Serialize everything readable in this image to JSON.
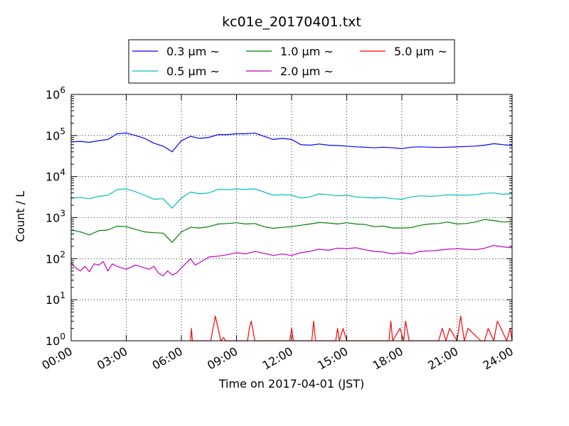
{
  "chart_data": {
    "type": "line",
    "title": "kc01e_20170401.txt",
    "xlabel": "Time on 2017-04-01 (JST)",
    "ylabel": "Count / L",
    "xlim": [
      0,
      24
    ],
    "ylim": [
      1,
      1000000
    ],
    "yscale": "log",
    "grid": true,
    "legend_position": "top",
    "x_tick_labels": [
      "00:00",
      "03:00",
      "06:00",
      "09:00",
      "12:00",
      "15:00",
      "18:00",
      "21:00",
      "24:00"
    ],
    "y_tick_labels": [
      {
        "base": "10",
        "exp": "0"
      },
      {
        "base": "10",
        "exp": "1"
      },
      {
        "base": "10",
        "exp": "2"
      },
      {
        "base": "10",
        "exp": "3"
      },
      {
        "base": "10",
        "exp": "4"
      },
      {
        "base": "10",
        "exp": "5"
      },
      {
        "base": "10",
        "exp": "6"
      }
    ],
    "series": [
      {
        "name": "0.3 μm ~",
        "color": "#0000ff",
        "x": [
          0,
          0.5,
          1,
          1.5,
          2,
          2.5,
          3,
          3.5,
          4,
          4.5,
          5,
          5.5,
          6,
          6.5,
          7,
          7.5,
          8,
          8.5,
          9,
          9.5,
          10,
          10.5,
          11,
          11.5,
          12,
          12.5,
          13,
          13.5,
          14,
          14.5,
          15,
          15.5,
          16,
          16.5,
          17,
          17.5,
          18,
          18.5,
          19,
          19.5,
          20,
          20.5,
          21,
          21.5,
          22,
          22.5,
          23,
          23.5,
          24
        ],
        "y": [
          70000,
          72000,
          68000,
          75000,
          80000,
          110000,
          115000,
          100000,
          85000,
          65000,
          55000,
          40000,
          75000,
          95000,
          85000,
          90000,
          105000,
          105000,
          110000,
          110000,
          115000,
          95000,
          80000,
          85000,
          80000,
          60000,
          58000,
          62000,
          58000,
          57000,
          55000,
          53000,
          52000,
          50000,
          52000,
          50000,
          48000,
          52000,
          53000,
          52000,
          51000,
          52000,
          53000,
          54000,
          55000,
          58000,
          63000,
          60000,
          57000
        ]
      },
      {
        "name": "0.5 μm ~",
        "color": "#00bfbf",
        "x": [
          0,
          0.5,
          1,
          1.5,
          2,
          2.5,
          3,
          3.5,
          4,
          4.5,
          5,
          5.5,
          6,
          6.5,
          7,
          7.5,
          8,
          8.5,
          9,
          9.5,
          10,
          10.5,
          11,
          11.5,
          12,
          12.5,
          13,
          13.5,
          14,
          14.5,
          15,
          15.5,
          16,
          16.5,
          17,
          17.5,
          18,
          18.5,
          19,
          19.5,
          20,
          20.5,
          21,
          21.5,
          22,
          22.5,
          23,
          23.5,
          24
        ],
        "y": [
          3000,
          3100,
          2900,
          3300,
          3500,
          4800,
          5000,
          4300,
          3500,
          2800,
          2900,
          1700,
          3000,
          4200,
          3800,
          4000,
          4900,
          4800,
          5000,
          4900,
          5000,
          4200,
          3500,
          3600,
          3500,
          3000,
          3200,
          3800,
          3600,
          3400,
          3500,
          3200,
          3100,
          3000,
          3100,
          2900,
          2800,
          3200,
          3400,
          3300,
          3400,
          3600,
          3500,
          3500,
          3600,
          3900,
          4000,
          3700,
          3800
        ]
      },
      {
        "name": "1.0 μm ~",
        "color": "#008000",
        "x": [
          0,
          0.5,
          1,
          1.5,
          2,
          2.5,
          3,
          3.5,
          4,
          4.5,
          5,
          5.5,
          6,
          6.5,
          7,
          7.5,
          8,
          8.5,
          9,
          9.5,
          10,
          10.5,
          11,
          11.5,
          12,
          12.5,
          13,
          13.5,
          14,
          14.5,
          15,
          15.5,
          16,
          16.5,
          17,
          17.5,
          18,
          18.5,
          19,
          19.5,
          20,
          20.5,
          21,
          21.5,
          22,
          22.5,
          23,
          23.5,
          24
        ],
        "y": [
          500,
          450,
          380,
          480,
          500,
          620,
          600,
          520,
          450,
          430,
          420,
          250,
          450,
          580,
          560,
          600,
          700,
          720,
          750,
          700,
          720,
          600,
          550,
          580,
          600,
          650,
          700,
          760,
          740,
          700,
          750,
          700,
          680,
          600,
          620,
          560,
          560,
          570,
          650,
          700,
          720,
          780,
          700,
          720,
          780,
          900,
          850,
          780,
          800
        ]
      },
      {
        "name": "2.0 μm ~",
        "color": "#bf00bf",
        "x": [
          0,
          0.25,
          0.5,
          0.75,
          1,
          1.25,
          1.5,
          1.75,
          2,
          2.25,
          2.5,
          3,
          3.5,
          4,
          4.25,
          4.5,
          4.75,
          5,
          5.25,
          5.5,
          5.75,
          6,
          6.5,
          6.75,
          7,
          7.5,
          8,
          8.5,
          9,
          9.5,
          10,
          10.5,
          11,
          11.5,
          12,
          12.5,
          13,
          13.5,
          14,
          14.5,
          15,
          15.5,
          16,
          16.5,
          17,
          17.5,
          18,
          18.5,
          19,
          19.5,
          20,
          20.5,
          21,
          21.5,
          22,
          22.5,
          23,
          23.5,
          24
        ],
        "y": [
          80,
          60,
          50,
          65,
          48,
          75,
          70,
          85,
          50,
          75,
          65,
          55,
          70,
          60,
          55,
          65,
          45,
          38,
          50,
          40,
          45,
          60,
          100,
          70,
          80,
          110,
          115,
          125,
          140,
          130,
          150,
          135,
          120,
          130,
          120,
          140,
          150,
          170,
          160,
          180,
          175,
          185,
          165,
          150,
          145,
          130,
          140,
          130,
          150,
          155,
          160,
          170,
          175,
          170,
          165,
          180,
          210,
          195,
          185
        ]
      },
      {
        "name": "5.0 μm ~",
        "color": "#ff0000",
        "x": [
          6.5,
          6.55,
          6.6,
          7.5,
          7.6,
          7.85,
          8.15,
          8.3,
          8.4,
          9.6,
          9.7,
          9.8,
          10.0,
          10.2,
          11.9,
          12.0,
          12.1,
          13.1,
          13.2,
          13.3,
          14.4,
          14.5,
          14.6,
          14.8,
          15.0,
          15.2,
          17.3,
          17.4,
          17.5,
          17.9,
          18.1,
          18.2,
          18.4,
          20.0,
          20.2,
          20.4,
          20.6,
          21.0,
          21.2,
          21.4,
          21.6,
          22.3,
          22.5,
          22.7,
          23.0,
          23.2,
          23.4,
          23.7,
          23.9,
          24
        ],
        "y": [
          1,
          2,
          1,
          1,
          1,
          4,
          1,
          1.2,
          1,
          1,
          2,
          3,
          1,
          1,
          1,
          2,
          1,
          1,
          3,
          1,
          1,
          2,
          1,
          2,
          1,
          1,
          1,
          3,
          1,
          2,
          1,
          3,
          1,
          1,
          2,
          1,
          2,
          1,
          4,
          1,
          2,
          1,
          1,
          2,
          1,
          3,
          2,
          1,
          2,
          1
        ]
      }
    ]
  }
}
